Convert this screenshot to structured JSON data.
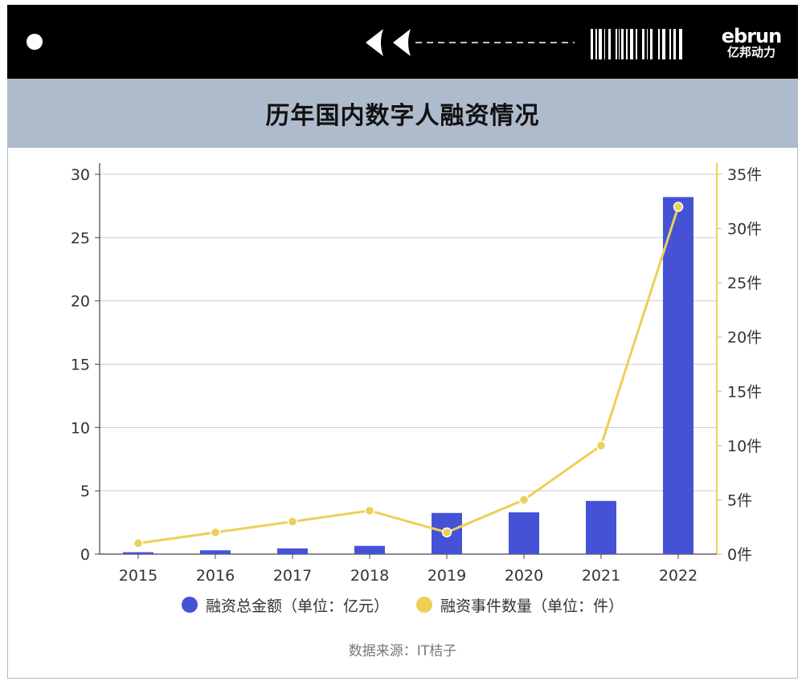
{
  "brand": {
    "logo_top": "ebrun",
    "logo_bottom": "亿邦动力"
  },
  "title": "历年国内数字人融资情况",
  "source": "数据来源：IT桔子",
  "colors": {
    "bar": "#4652d6",
    "line": "#ecd057",
    "title_bg": "#aebbcc",
    "grid": "#cccccc"
  },
  "chart_data": {
    "type": "bar",
    "categories": [
      "2015",
      "2016",
      "2017",
      "2018",
      "2019",
      "2020",
      "2021",
      "2022"
    ],
    "series": [
      {
        "name": "融资总金额（单位：亿元）",
        "type": "bar",
        "axis": "left",
        "values": [
          0.15,
          0.3,
          0.45,
          0.65,
          3.25,
          3.3,
          4.2,
          28.2
        ]
      },
      {
        "name": "融资事件数量（单位：件）",
        "type": "line",
        "axis": "right",
        "values": [
          1,
          2,
          3,
          4,
          2,
          5,
          10,
          32
        ]
      }
    ],
    "y_left": {
      "ticks": [
        "0",
        "5",
        "10",
        "15",
        "20",
        "25",
        "30"
      ],
      "lim": [
        0,
        30
      ]
    },
    "y_right": {
      "ticks": [
        "0件",
        "5件",
        "10件",
        "15件",
        "20件",
        "25件",
        "30件",
        "35件"
      ],
      "lim": [
        0,
        35
      ]
    },
    "grid": true,
    "legend_position": "bottom"
  }
}
